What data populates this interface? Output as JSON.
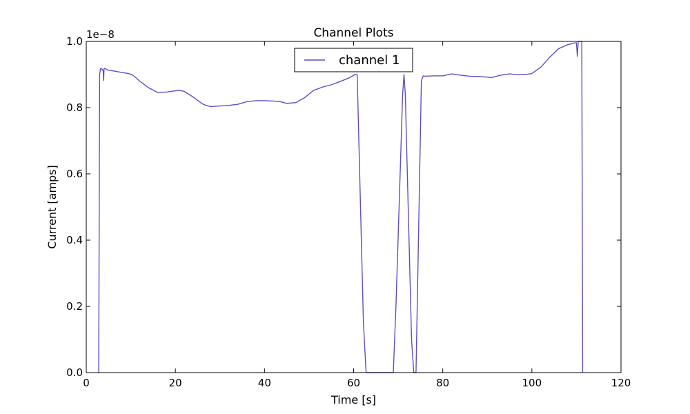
{
  "chart_data": {
    "type": "line",
    "title": "Channel Plots",
    "xlabel": "Time [s]",
    "ylabel": "Current [amps]",
    "offset_label": "1e−8",
    "xlim": [
      0,
      120
    ],
    "ylim": [
      0,
      1.0
    ],
    "xticks": [
      0,
      20,
      40,
      60,
      80,
      100,
      120
    ],
    "yticks": [
      0.0,
      0.2,
      0.4,
      0.6,
      0.8,
      1.0
    ],
    "xtick_labels": [
      "0",
      "20",
      "40",
      "60",
      "80",
      "100",
      "120"
    ],
    "ytick_labels": [
      "0.0",
      "0.2",
      "0.4",
      "0.6",
      "0.8",
      "1.0"
    ],
    "grid": false,
    "legend": {
      "placement": "top-center"
    },
    "series": [
      {
        "name": "channel 1",
        "color": "#5b4fc4",
        "x": [
          2.8,
          3.0,
          3.2,
          3.6,
          3.8,
          3.9,
          4.0,
          4.2,
          5.0,
          6.0,
          8.0,
          9.5,
          10.5,
          12.0,
          14.0,
          16.0,
          18.0,
          20.0,
          21.0,
          22.0,
          24.0,
          26.0,
          27.0,
          28.0,
          30.0,
          32.0,
          34.0,
          35.0,
          36.0,
          38.0,
          40.0,
          42.0,
          43.5,
          45.0,
          47.0,
          49.0,
          51.0,
          53.0,
          55.0,
          57.0,
          59.0,
          60.3,
          60.8,
          62.2,
          62.8,
          65.0,
          68.9,
          69.5,
          71.0,
          71.3,
          71.6,
          73.0,
          73.5,
          74.0,
          75.2,
          75.6,
          76.0,
          78.0,
          80.0,
          82.0,
          84.0,
          86.0,
          88.0,
          90.0,
          91.0,
          93.0,
          95.0,
          97.0,
          99.0,
          100.0,
          102.0,
          104.0,
          106.0,
          108.0,
          109.5,
          110.0,
          110.2,
          110.4,
          110.8,
          111.0,
          111.2,
          111.4
        ],
        "y": [
          0.0,
          0.9,
          0.918,
          0.916,
          0.91,
          0.882,
          0.918,
          0.918,
          0.913,
          0.911,
          0.906,
          0.903,
          0.898,
          0.88,
          0.86,
          0.846,
          0.847,
          0.851,
          0.852,
          0.849,
          0.832,
          0.812,
          0.806,
          0.803,
          0.805,
          0.807,
          0.81,
          0.814,
          0.818,
          0.821,
          0.821,
          0.82,
          0.818,
          0.813,
          0.815,
          0.83,
          0.852,
          0.862,
          0.869,
          0.879,
          0.89,
          0.9,
          0.9,
          0.15,
          0.0,
          0.0,
          0.0,
          0.2,
          0.84,
          0.9,
          0.84,
          0.1,
          0.0,
          0.0,
          0.88,
          0.896,
          0.895,
          0.896,
          0.896,
          0.902,
          0.898,
          0.895,
          0.894,
          0.892,
          0.891,
          0.898,
          0.902,
          0.899,
          0.901,
          0.903,
          0.922,
          0.952,
          0.978,
          0.99,
          0.995,
          0.996,
          0.955,
          1.0,
          1.0,
          1.0,
          1.0,
          0.0
        ]
      }
    ]
  }
}
